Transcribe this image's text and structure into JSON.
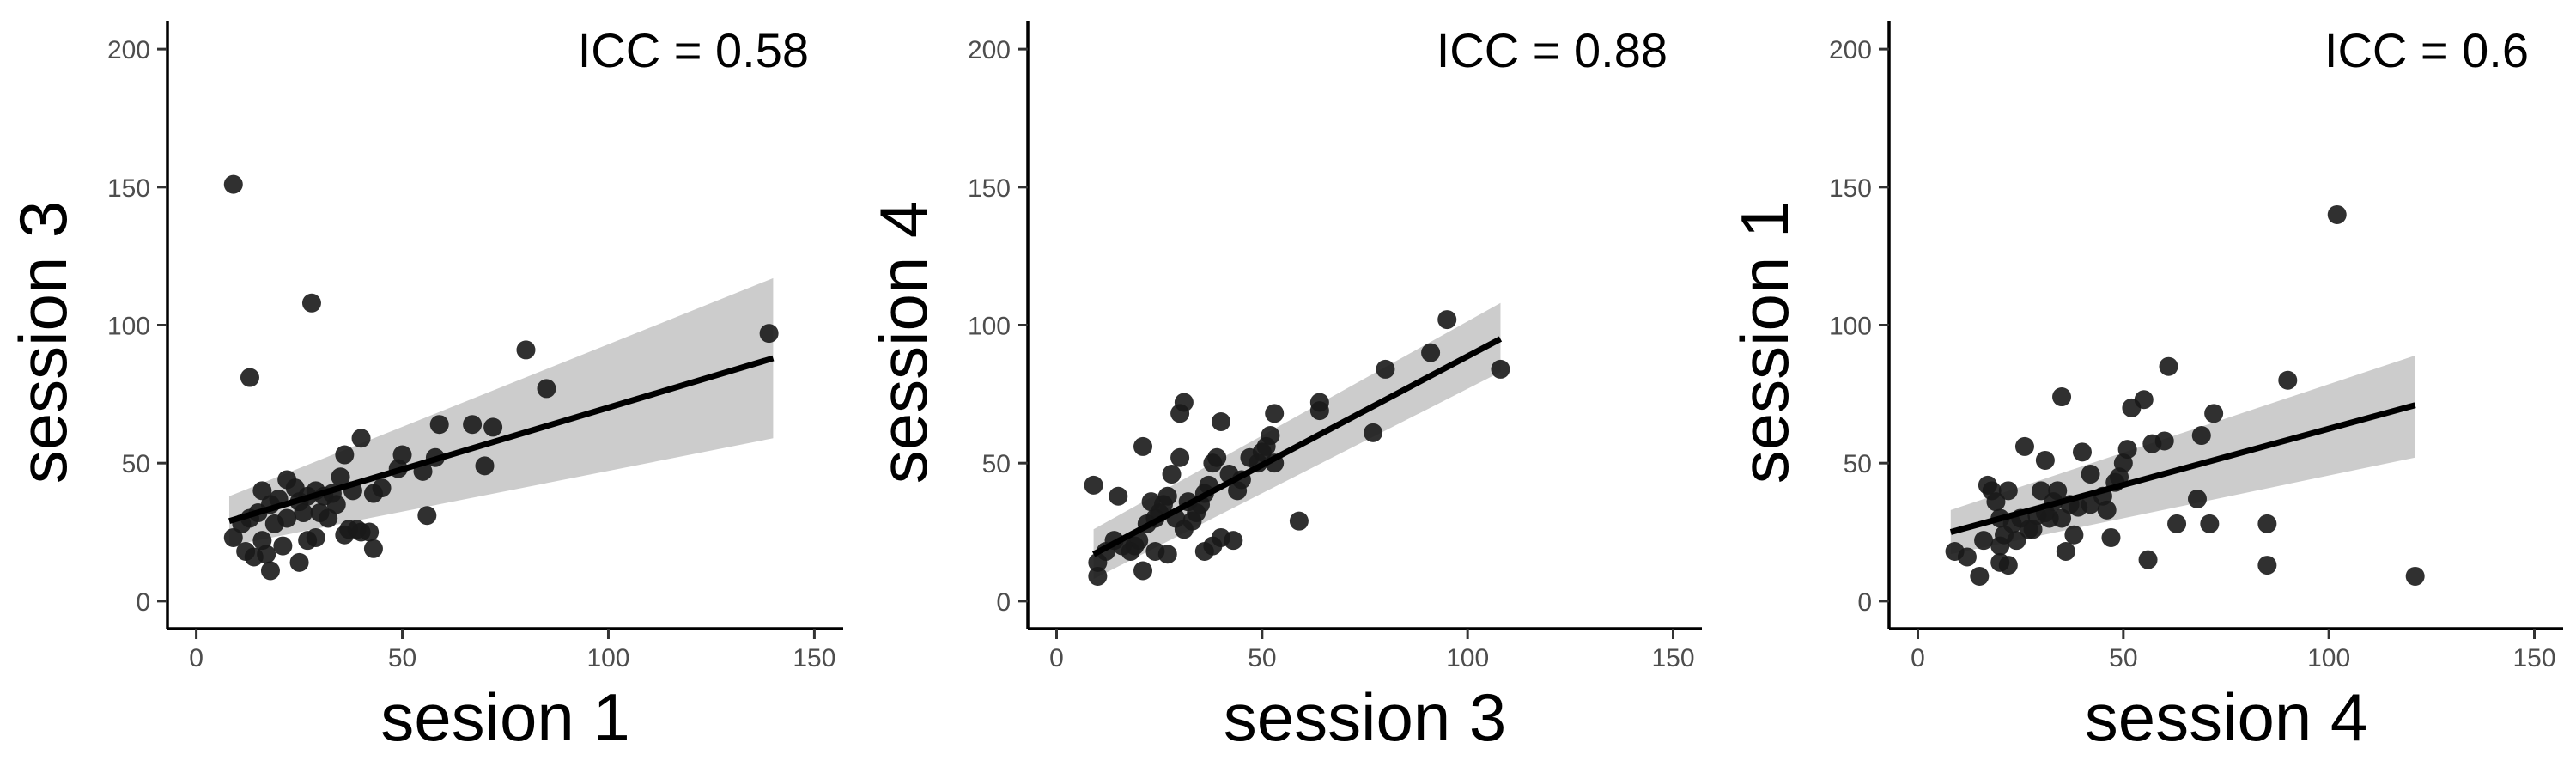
{
  "chart_data": [
    {
      "type": "scatter",
      "xlabel": "sesion 1",
      "ylabel": "session 3",
      "annotation": "ICC = 0.58",
      "xlim": [
        -7,
        157
      ],
      "ylim": [
        -10,
        210
      ],
      "xticks": [
        0,
        50,
        100,
        150
      ],
      "yticks": [
        0,
        50,
        100,
        150,
        200
      ],
      "grid": false,
      "point_color": "#1a1a1a",
      "line_color": "#000000",
      "band_color": "#cccccc",
      "fit": {
        "x": [
          8,
          140
        ],
        "y": [
          29,
          88
        ],
        "lower": [
          20,
          59
        ],
        "upper": [
          38,
          117
        ]
      },
      "points": [
        [
          9,
          151
        ],
        [
          13,
          81
        ],
        [
          28,
          108
        ],
        [
          80,
          91
        ],
        [
          85,
          77
        ],
        [
          139,
          97
        ],
        [
          59,
          64
        ],
        [
          67,
          64
        ],
        [
          72,
          63
        ],
        [
          70,
          49
        ],
        [
          50,
          53
        ],
        [
          55,
          47
        ],
        [
          58,
          52
        ],
        [
          49,
          48
        ],
        [
          45,
          41
        ],
        [
          43,
          39
        ],
        [
          40,
          59
        ],
        [
          36,
          53
        ],
        [
          38,
          40
        ],
        [
          35,
          45
        ],
        [
          33,
          39
        ],
        [
          31,
          38
        ],
        [
          29,
          40
        ],
        [
          27,
          38
        ],
        [
          24,
          41
        ],
        [
          22,
          44
        ],
        [
          20,
          37
        ],
        [
          18,
          35
        ],
        [
          15,
          32
        ],
        [
          13,
          30
        ],
        [
          11,
          28
        ],
        [
          9,
          23
        ],
        [
          12,
          18
        ],
        [
          14,
          16
        ],
        [
          16,
          22
        ],
        [
          17,
          17
        ],
        [
          18,
          11
        ],
        [
          21,
          20
        ],
        [
          25,
          14
        ],
        [
          27,
          22
        ],
        [
          29,
          23
        ],
        [
          30,
          32
        ],
        [
          32,
          30
        ],
        [
          34,
          35
        ],
        [
          36,
          24
        ],
        [
          37,
          26
        ],
        [
          39,
          26
        ],
        [
          40,
          25
        ],
        [
          42,
          25
        ],
        [
          43,
          19
        ],
        [
          22,
          30
        ],
        [
          26,
          32
        ],
        [
          56,
          31
        ],
        [
          25,
          36
        ],
        [
          19,
          28
        ],
        [
          16,
          40
        ]
      ]
    },
    {
      "type": "scatter",
      "xlabel": "session 3",
      "ylabel": "session 4",
      "annotation": "ICC = 0.88",
      "xlim": [
        -7,
        157
      ],
      "ylim": [
        -10,
        210
      ],
      "xticks": [
        0,
        50,
        100,
        150
      ],
      "yticks": [
        0,
        50,
        100,
        150,
        200
      ],
      "grid": false,
      "point_color": "#1a1a1a",
      "line_color": "#000000",
      "band_color": "#cccccc",
      "fit": {
        "x": [
          9,
          108
        ],
        "y": [
          17,
          95
        ],
        "lower": [
          8,
          83
        ],
        "upper": [
          26,
          108
        ]
      },
      "points": [
        [
          95,
          102
        ],
        [
          108,
          84
        ],
        [
          91,
          90
        ],
        [
          80,
          84
        ],
        [
          77,
          61
        ],
        [
          64,
          72
        ],
        [
          64,
          69
        ],
        [
          53,
          68
        ],
        [
          52,
          60
        ],
        [
          51,
          56
        ],
        [
          50,
          54
        ],
        [
          49,
          50
        ],
        [
          47,
          52
        ],
        [
          45,
          44
        ],
        [
          44,
          40
        ],
        [
          42,
          46
        ],
        [
          40,
          65
        ],
        [
          39,
          52
        ],
        [
          38,
          50
        ],
        [
          37,
          42
        ],
        [
          36,
          39
        ],
        [
          35,
          35
        ],
        [
          34,
          32
        ],
        [
          32,
          36
        ],
        [
          31,
          72
        ],
        [
          30,
          68
        ],
        [
          30,
          52
        ],
        [
          28,
          46
        ],
        [
          27,
          38
        ],
        [
          26,
          35
        ],
        [
          25,
          32
        ],
        [
          24,
          30
        ],
        [
          22,
          28
        ],
        [
          21,
          56
        ],
        [
          20,
          22
        ],
        [
          19,
          20
        ],
        [
          18,
          18
        ],
        [
          16,
          20
        ],
        [
          15,
          38
        ],
        [
          14,
          22
        ],
        [
          12,
          18
        ],
        [
          10,
          14
        ],
        [
          9,
          42
        ],
        [
          10,
          9
        ],
        [
          21,
          11
        ],
        [
          24,
          18
        ],
        [
          27,
          17
        ],
        [
          31,
          26
        ],
        [
          33,
          29
        ],
        [
          36,
          18
        ],
        [
          38,
          20
        ],
        [
          40,
          23
        ],
        [
          43,
          22
        ],
        [
          59,
          29
        ],
        [
          53,
          50
        ],
        [
          29,
          30
        ],
        [
          23,
          36
        ]
      ]
    },
    {
      "type": "scatter",
      "xlabel": "session 4",
      "ylabel": "session 1",
      "annotation": "ICC = 0.6",
      "xlim": [
        -7,
        157
      ],
      "ylim": [
        -10,
        210
      ],
      "xticks": [
        0,
        50,
        100,
        150
      ],
      "yticks": [
        0,
        50,
        100,
        150,
        200
      ],
      "grid": false,
      "point_color": "#1a1a1a",
      "line_color": "#000000",
      "band_color": "#cccccc",
      "fit": {
        "x": [
          8,
          121
        ],
        "y": [
          25,
          71
        ],
        "lower": [
          17,
          52
        ],
        "upper": [
          33,
          89
        ]
      },
      "points": [
        [
          102,
          140
        ],
        [
          121,
          9
        ],
        [
          90,
          80
        ],
        [
          85,
          28
        ],
        [
          85,
          13
        ],
        [
          68,
          37
        ],
        [
          71,
          28
        ],
        [
          72,
          68
        ],
        [
          69,
          60
        ],
        [
          63,
          28
        ],
        [
          61,
          85
        ],
        [
          60,
          58
        ],
        [
          57,
          57
        ],
        [
          55,
          73
        ],
        [
          52,
          70
        ],
        [
          51,
          55
        ],
        [
          50,
          50
        ],
        [
          49,
          45
        ],
        [
          47,
          23
        ],
        [
          45,
          38
        ],
        [
          42,
          46
        ],
        [
          40,
          54
        ],
        [
          38,
          24
        ],
        [
          36,
          18
        ],
        [
          35,
          74
        ],
        [
          34,
          40
        ],
        [
          33,
          36
        ],
        [
          31,
          32
        ],
        [
          30,
          40
        ],
        [
          28,
          26
        ],
        [
          26,
          56
        ],
        [
          25,
          30
        ],
        [
          23,
          28
        ],
        [
          22,
          40
        ],
        [
          21,
          24
        ],
        [
          20,
          20
        ],
        [
          19,
          36
        ],
        [
          18,
          40
        ],
        [
          17,
          42
        ],
        [
          16,
          22
        ],
        [
          15,
          9
        ],
        [
          12,
          16
        ],
        [
          9,
          18
        ],
        [
          20,
          14
        ],
        [
          22,
          13
        ],
        [
          24,
          22
        ],
        [
          27,
          26
        ],
        [
          29,
          31
        ],
        [
          32,
          30
        ],
        [
          35,
          30
        ],
        [
          37,
          35
        ],
        [
          39,
          34
        ],
        [
          42,
          35
        ],
        [
          46,
          33
        ],
        [
          56,
          15
        ],
        [
          48,
          43
        ],
        [
          20,
          30
        ],
        [
          31,
          51
        ]
      ]
    }
  ]
}
